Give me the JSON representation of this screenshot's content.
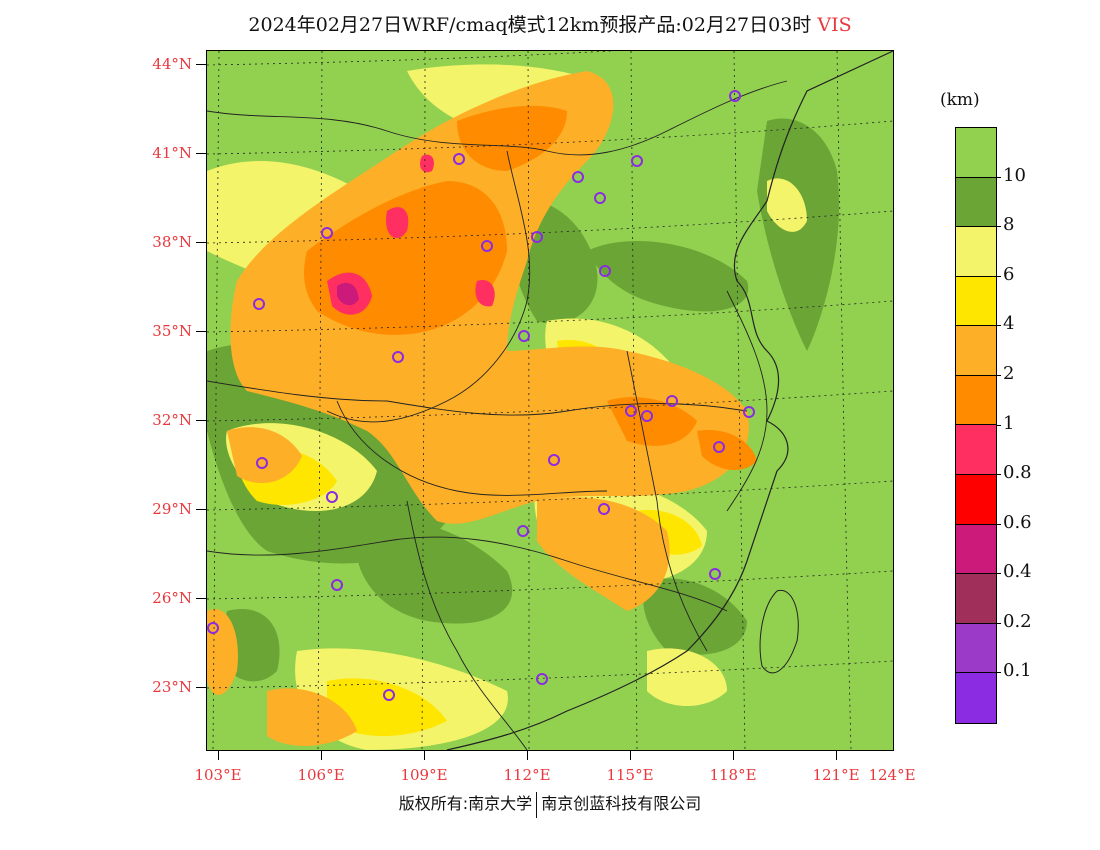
{
  "header": {
    "title": "2024年02月27日WRF/cmaq模式12km预报产品:02月27日03时",
    "variable": "VIS"
  },
  "map": {
    "lat_labels": [
      "44°N",
      "41°N",
      "38°N",
      "35°N",
      "32°N",
      "29°N",
      "26°N",
      "23°N"
    ],
    "lon_labels": [
      "103°E",
      "106°E",
      "109°E",
      "112°E",
      "115°E",
      "118°E",
      "121°E",
      "124°E"
    ],
    "colors": {
      "ocean": "#92d050",
      "vis_10_plus": "#92d050",
      "vis_8_10": "#6aa536",
      "vis_6_8": "#f4f46a",
      "vis_4_6": "#ffe600",
      "vis_2_4": "#fdaf27",
      "vis_1_2": "#ff8c00",
      "vis_08_1": "#ff3061",
      "vis_06_08": "#ff0000",
      "vis_04_06": "#cc1a7a",
      "vis_02_04": "#a02f5a",
      "vis_01_02": "#9b39c8",
      "vis_lt_01": "#8b2be2",
      "city_marker": "#8b2be2"
    },
    "city_count": 27
  },
  "colorbar": {
    "unit": "(km)",
    "colors": [
      "#92d050",
      "#6aa536",
      "#f4f46a",
      "#ffe600",
      "#fdaf27",
      "#ff8c00",
      "#ff3061",
      "#ff0000",
      "#cc1a7a",
      "#a02f5a",
      "#9b39c8",
      "#8b2be2"
    ],
    "labels": [
      "10",
      "8",
      "6",
      "4",
      "2",
      "1",
      "0.8",
      "0.6",
      "0.4",
      "0.2",
      "0.1"
    ]
  },
  "footer": {
    "copyright": "版权所有:南京大学",
    "company": "南京创蓝科技有限公司"
  }
}
